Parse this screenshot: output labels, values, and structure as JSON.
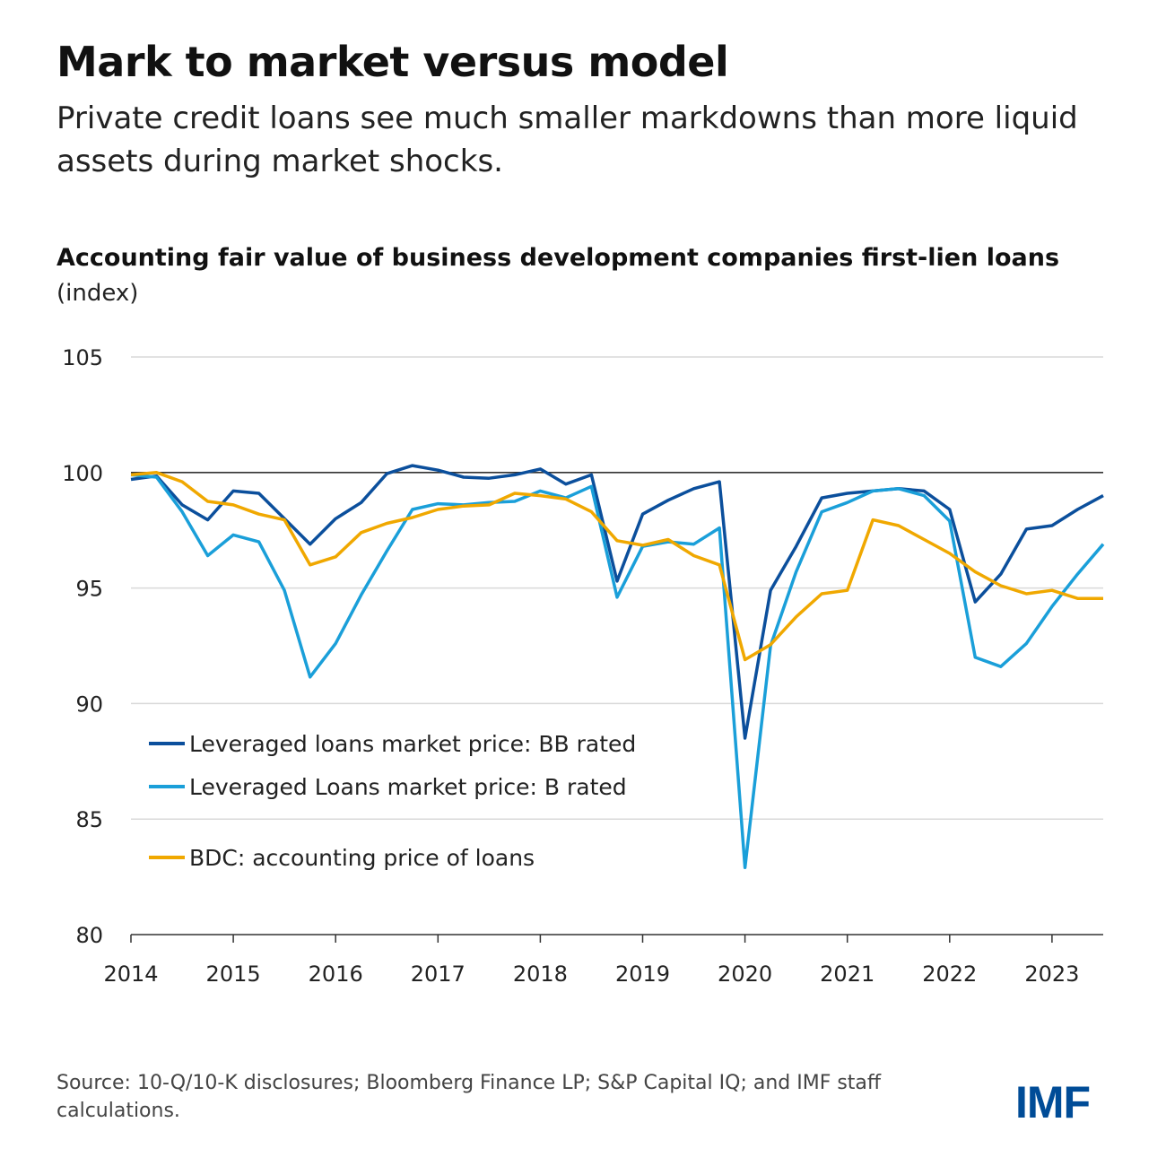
{
  "title": "Mark to market versus model",
  "subtitle": "Private credit loans see much smaller markdowns than more liquid assets during market shocks.",
  "source": "Source: 10-Q/10-K disclosures; Bloomberg Finance LP; S&P Capital IQ; and IMF staff calculations.",
  "logo": "IMF",
  "chart_data": {
    "type": "line",
    "title": "Accounting fair value of business development companies first-lien loans",
    "ylabel": "(index)",
    "ylim": [
      80,
      105
    ],
    "yticks": [
      80,
      85,
      90,
      95,
      100,
      105
    ],
    "xlim": [
      2014,
      2023.5
    ],
    "xticks": [
      "2014",
      "2015",
      "2016",
      "2017",
      "2018",
      "2019",
      "2020",
      "2021",
      "2022",
      "2023"
    ],
    "x_frequency": "quarterly",
    "x_start": "2014",
    "reference_line": 100,
    "grid": true,
    "legend_placement": "bottom-left",
    "series": [
      {
        "name": "Leveraged loans market price: BB rated",
        "color": "#0b4f9c",
        "values": [
          99.7,
          99.85,
          98.6,
          97.95,
          99.2,
          99.1,
          98.0,
          96.9,
          98.0,
          98.7,
          99.95,
          100.3,
          100.1,
          99.8,
          99.75,
          99.9,
          100.15,
          99.5,
          99.9,
          95.3,
          98.2,
          98.8,
          99.3,
          99.6,
          88.5,
          94.9,
          96.8,
          98.9,
          99.1,
          99.2,
          99.3,
          99.2,
          98.4,
          94.4,
          95.6,
          97.55,
          97.7,
          98.4,
          99.0
        ]
      },
      {
        "name": "Leveraged Loans market price: B rated",
        "color": "#1a9fd9",
        "values": [
          99.9,
          99.8,
          98.3,
          96.4,
          97.3,
          97.0,
          94.9,
          91.15,
          92.6,
          94.7,
          96.6,
          98.4,
          98.65,
          98.6,
          98.7,
          98.75,
          99.2,
          98.9,
          99.4,
          94.6,
          96.8,
          97.0,
          96.9,
          97.6,
          82.9,
          92.5,
          95.7,
          98.3,
          98.7,
          99.2,
          99.3,
          99.0,
          97.9,
          92.0,
          91.6,
          92.6,
          94.2,
          95.6,
          96.9
        ]
      },
      {
        "name": "BDC: accounting price of loans",
        "color": "#f0a800",
        "values": [
          99.9,
          100.0,
          99.6,
          98.75,
          98.6,
          98.2,
          97.95,
          96.0,
          96.35,
          97.4,
          97.8,
          98.05,
          98.4,
          98.55,
          98.6,
          99.1,
          99.0,
          98.85,
          98.3,
          97.05,
          96.85,
          97.1,
          96.4,
          96.0,
          91.9,
          92.55,
          93.75,
          94.75,
          94.9,
          97.95,
          97.7,
          97.1,
          96.5,
          95.7,
          95.1,
          94.75,
          94.9,
          94.55,
          94.55
        ]
      }
    ]
  }
}
